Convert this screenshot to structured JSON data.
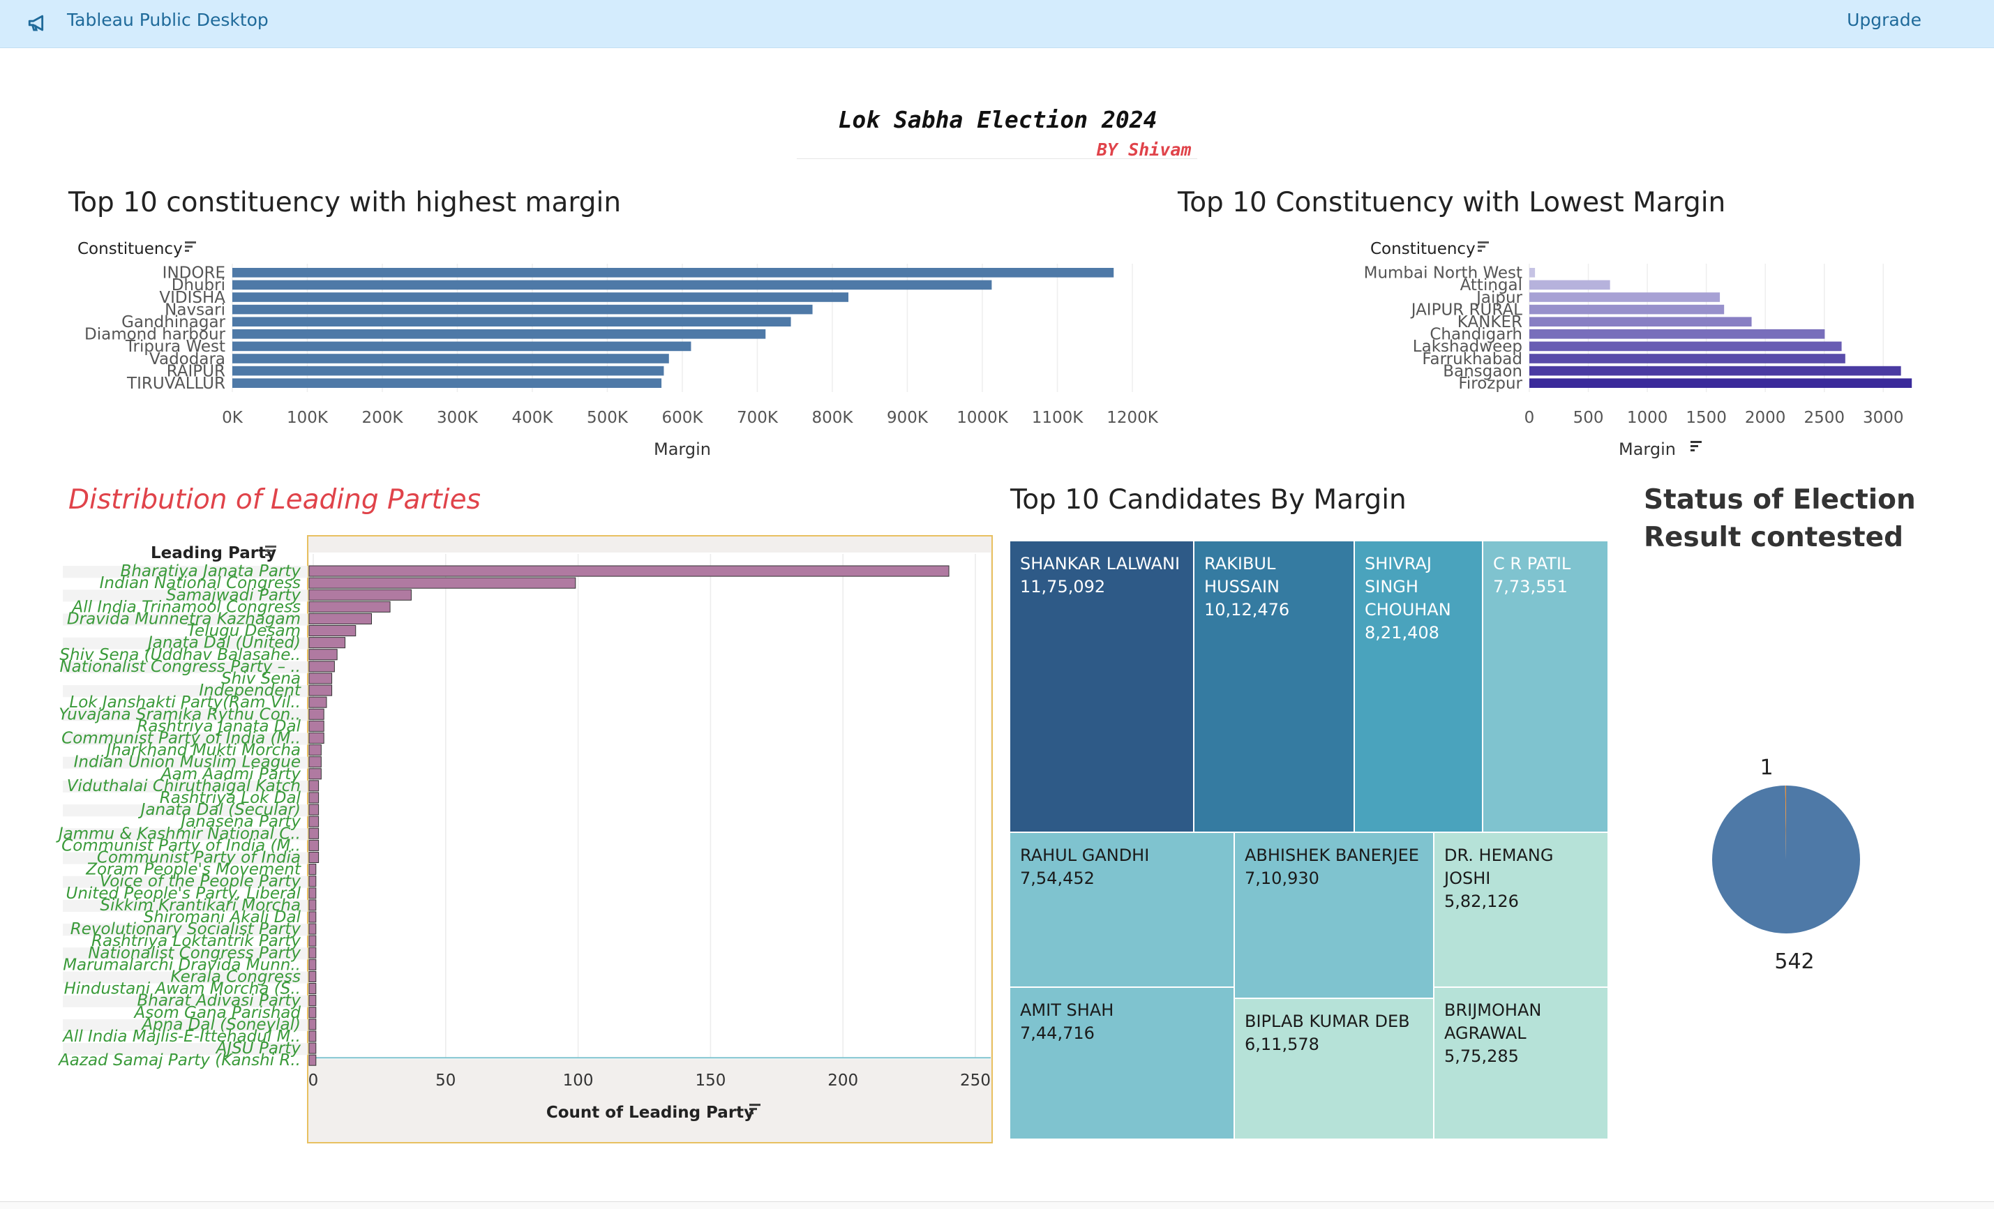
{
  "topbar": {
    "app_title": "Tableau Public Desktop",
    "upgrade_label": "Upgrade",
    "icon": "megaphone-icon"
  },
  "dashboard": {
    "title": "Lok Sabha Election 2024",
    "subtitle": "BY Shivam"
  },
  "highest_margin": {
    "title": "Top 10 constituency with highest margin",
    "chart_data": {
      "type": "bar",
      "categories": [
        "INDORE",
        "Dhubri",
        "VIDISHA",
        "Navsari",
        "Gandhinagar",
        "Diamond harbour",
        "Tripura West",
        "Vadodara",
        "RAIPUR",
        "TIRUVALLUR"
      ],
      "values": [
        1175092,
        1012476,
        821408,
        773551,
        744716,
        710930,
        611578,
        582126,
        575285,
        572155
      ],
      "xlabel": "Margin",
      "ylabel": "Constituency",
      "x_ticks": [
        "0K",
        "100K",
        "200K",
        "300K",
        "400K",
        "500K",
        "600K",
        "700K",
        "800K",
        "900K",
        "1000K",
        "1100K",
        "1200K"
      ],
      "xlim": [
        0,
        1200000
      ],
      "color": "#4e79a7",
      "grid": true
    }
  },
  "lowest_margin": {
    "title": "Top 10 Constituency with Lowest Margin",
    "chart_data": {
      "type": "bar",
      "categories": [
        "Mumbai North West",
        "Attingal",
        "Jaipur",
        "JAIPUR RURAL",
        "KANKER",
        "Chandigarh",
        "Lakshadweep",
        "Farrukhabad",
        "Bansgaon",
        "Firozpur"
      ],
      "values": [
        48,
        684,
        1615,
        1651,
        1884,
        2504,
        2647,
        2678,
        3150,
        3242
      ],
      "xlabel": "Margin",
      "ylabel": "Constituency",
      "x_ticks": [
        "0",
        "500",
        "1000",
        "1500",
        "2000",
        "2500",
        "3000"
      ],
      "xlim": [
        0,
        3300
      ],
      "color_low": "#c6c3e4",
      "color_high": "#3a2a9a",
      "grid": true
    }
  },
  "leading_parties": {
    "title": "Distribution of Leading Parties",
    "chart_data": {
      "type": "bar",
      "categories": [
        "Bharatiya Janata Party",
        "Indian National Congress",
        "Samajwadi Party",
        "All India Trinamool Congress",
        "Dravida Munnetra Kazhagam",
        "Telugu Desam",
        "Janata Dal (United)",
        "Shiv Sena (Uddhav Balasahe..",
        "Nationalist Congress Party – ..",
        "Shiv Sena",
        "Independent",
        "Lok Janshakti Party(Ram Vil..",
        "Yuvajana Sramika Rythu Con..",
        "Rashtriya Janata Dal",
        "Communist Party of India (M..",
        "Jharkhand Mukti Morcha",
        "Indian Union Muslim League",
        "Aam Aadmi Party",
        "Viduthalai Chiruthaigal Katch",
        "Rashtriya Lok Dal",
        "Janata Dal (Secular)",
        "Janasena Party",
        "Jammu & Kashmir National C..",
        "Communist Party of India (M..",
        "Communist Party of India",
        "Zoram People's Movement",
        "Voice of the People Party",
        "United People's Party, Liberal",
        "Sikkim Krantikari Morcha",
        "Shiromani Akali Dal",
        "Revolutionary Socialist Party",
        "Rashtriya Loktantrik Party",
        "Nationalist Congress Party",
        "Marumalarchi Dravida Munn..",
        "Kerala Congress",
        "Hindustani Awam Morcha (S..",
        "Bharat Adivasi Party",
        "Asom Gana Parishad",
        "Apna Dal (Soneylal)",
        "All India Majlis-E-Ittehadul M..",
        "AJSU Party",
        "Aazad Samaj Party (Kanshi R.."
      ],
      "values": [
        240,
        99,
        37,
        29,
        22,
        16,
        12,
        9,
        8,
        7,
        7,
        5,
        4,
        4,
        4,
        3,
        3,
        3,
        2,
        2,
        2,
        2,
        2,
        2,
        2,
        1,
        1,
        1,
        1,
        1,
        1,
        1,
        1,
        1,
        1,
        1,
        1,
        1,
        1,
        1,
        1,
        1
      ],
      "xlabel": "Count of Leading Party",
      "ylabel": "Leading Party",
      "x_ticks": [
        "0",
        "50",
        "100",
        "150",
        "200",
        "250"
      ],
      "xlim": [
        0,
        250
      ],
      "color": "#b07aa1",
      "label_color": "#3a9a3a"
    }
  },
  "candidates": {
    "title": "Top 10 Candidates By Margin",
    "tiles": [
      {
        "name": "SHANKAR LALWANI",
        "value": "11,75,092",
        "color": "#2e5a87",
        "text": "#ffffff"
      },
      {
        "name": "RAKIBUL HUSSAIN",
        "value": "10,12,476",
        "color": "#357ba1",
        "text": "#ffffff"
      },
      {
        "name": "SHIVRAJ SINGH CHOUHAN",
        "value": "8,21,408",
        "color": "#4aa3bd",
        "text": "#ffffff"
      },
      {
        "name": "C R PATIL",
        "value": "7,73,551",
        "color": "#7fc3cf",
        "text": "#ffffff"
      },
      {
        "name": "RAHUL GANDHI",
        "value": "7,54,452",
        "color": "#7fc3cf",
        "text": "#1a1a1a"
      },
      {
        "name": "ABHISHEK BANERJEE",
        "value": "7,10,930",
        "color": "#7fc3cf",
        "text": "#1a1a1a"
      },
      {
        "name": "DR. HEMANG JOSHI",
        "value": "5,82,126",
        "color": "#b6e2d8",
        "text": "#1a1a1a"
      },
      {
        "name": "AMIT SHAH",
        "value": "7,44,716",
        "color": "#7fc3cf",
        "text": "#1a1a1a"
      },
      {
        "name": "BIPLAB KUMAR DEB",
        "value": "6,11,578",
        "color": "#b6e2d8",
        "text": "#1a1a1a"
      },
      {
        "name": "BRIJMOHAN AGRAWAL",
        "value": "5,75,285",
        "color": "#b6e2d8",
        "text": "#1a1a1a"
      }
    ]
  },
  "status": {
    "title_line1": "Status of Election",
    "title_line2": "Result contested",
    "chart_data": {
      "type": "pie",
      "values": [
        542,
        1
      ],
      "labels": [
        "542",
        "1"
      ],
      "colors": [
        "#4e79a7",
        "#f28e2b"
      ]
    }
  }
}
